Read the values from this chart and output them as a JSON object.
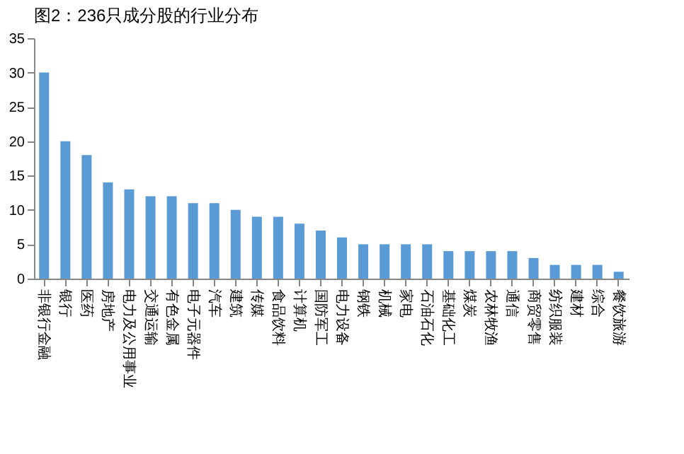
{
  "chart_data": {
    "type": "bar",
    "title": "图2：236只成分股的行业分布",
    "categories": [
      "非银行金融",
      "银行",
      "医药",
      "房地产",
      "电力及公用事业",
      "交通运输",
      "有色金属",
      "电子元器件",
      "汽车",
      "建筑",
      "传媒",
      "食品饮料",
      "计算机",
      "国防军工",
      "电力设备",
      "钢铁",
      "机械",
      "家电",
      "石油石化",
      "基础化工",
      "煤炭",
      "农林牧渔",
      "通信",
      "商贸零售",
      "纺织服装",
      "建材",
      "综合",
      "餐饮旅游"
    ],
    "values": [
      30,
      20,
      18,
      14,
      13,
      12,
      12,
      11,
      11,
      10,
      9,
      9,
      8,
      7,
      6,
      5,
      5,
      5,
      5,
      4,
      4,
      4,
      4,
      3,
      2,
      2,
      2,
      1
    ],
    "color": "#5b9bd5",
    "ylim": [
      0,
      35
    ],
    "yticks": [
      0,
      5,
      10,
      15,
      20,
      25,
      30,
      35
    ],
    "grid": false
  }
}
